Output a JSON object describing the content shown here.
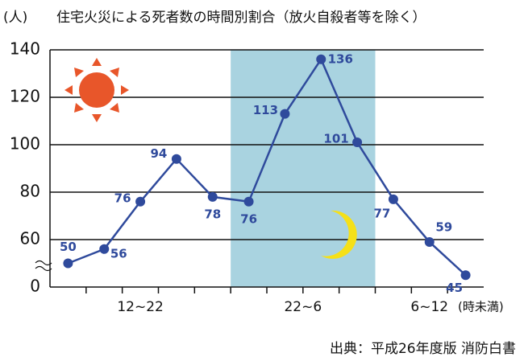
{
  "chart_data": {
    "type": "line",
    "y_unit": "(人)",
    "title": "住宅火災による死者数の時間別割合（放火自殺者等を除く）",
    "categories": [
      null,
      null,
      null,
      null,
      null,
      null,
      null,
      null,
      null,
      null,
      null,
      null
    ],
    "values": [
      50,
      56,
      76,
      94,
      78,
      76,
      113,
      136,
      101,
      77,
      59,
      45
    ],
    "color": "#2f4a9c",
    "ylim": [
      0,
      140
    ],
    "yticks": [
      0,
      60,
      80,
      100,
      120,
      140
    ],
    "axis_break": true,
    "grid": true,
    "x_groups": [
      {
        "label": "12~22",
        "count": 5
      },
      {
        "label": "22~6",
        "count": 4
      },
      {
        "label": "6~12",
        "count": 3
      }
    ],
    "shaded_group": 1,
    "shade_color": "#a9d3e0",
    "x_unit": "(時未満)",
    "source": "出典：平成26年度版 消防白書"
  }
}
